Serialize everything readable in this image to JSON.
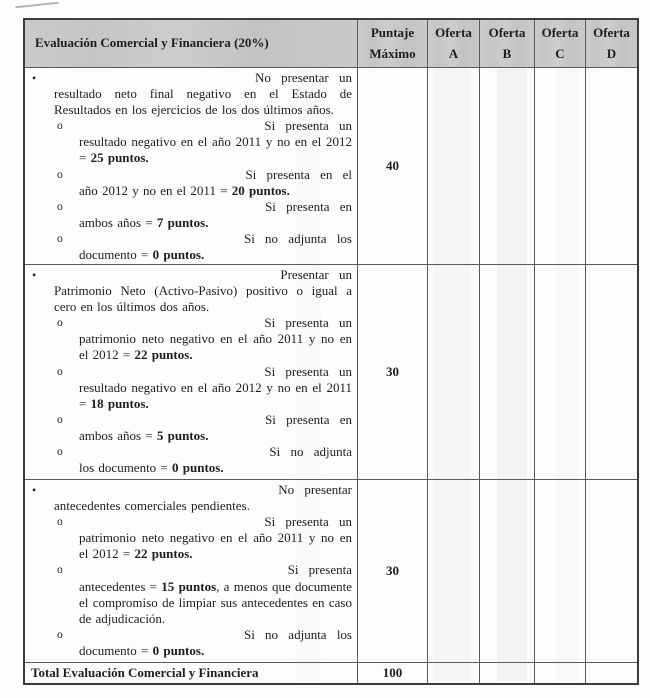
{
  "table": {
    "bullet_marker": "•",
    "sub_marker": "o",
    "header": {
      "criteria_label": "Evaluación Comercial y Financiera (20%)",
      "score_col": {
        "line1": "Puntaje",
        "line2": "Máximo"
      },
      "offer_cols": [
        {
          "line1": "Oferta",
          "letter": "A"
        },
        {
          "line1": "Oferta",
          "letter": "B"
        },
        {
          "line1": "Oferta",
          "letter": "C"
        },
        {
          "line1": "Oferta",
          "letter": "D"
        }
      ]
    },
    "rows": [
      {
        "max_score": "40",
        "offers": [
          "",
          "",
          "",
          ""
        ],
        "items": [
          {
            "level": 1,
            "first": "No presentar un",
            "rest": [
              {
                "t": "resultado neto final negativo en el Estado de Resultados en los ejercicios de los dos últimos años."
              }
            ]
          },
          {
            "level": 2,
            "first": "Si presenta un",
            "rest": [
              {
                "t": "resultado negativo en el año 2011 y no en el 2012 = "
              },
              {
                "t": "25 puntos.",
                "b": true
              }
            ]
          },
          {
            "level": 2,
            "first": "Si presenta en el",
            "rest": [
              {
                "t": "año 2012 y no en el 2011 = "
              },
              {
                "t": "20 puntos.",
                "b": true
              }
            ]
          },
          {
            "level": 2,
            "first": "Si presenta en",
            "rest": [
              {
                "t": "ambos años = "
              },
              {
                "t": "7 puntos.",
                "b": true
              }
            ]
          },
          {
            "level": 2,
            "first": "Si no adjunta los",
            "rest": [
              {
                "t": "documento = "
              },
              {
                "t": "0 puntos.",
                "b": true
              }
            ]
          }
        ]
      },
      {
        "max_score": "30",
        "offers": [
          "",
          "",
          "",
          ""
        ],
        "items": [
          {
            "level": 1,
            "first": "Presentar un",
            "rest": [
              {
                "t": "Patrimonio Neto (Activo-Pasivo) positivo o igual a cero en los últimos dos años."
              }
            ]
          },
          {
            "level": 2,
            "first": "Si presenta un",
            "rest": [
              {
                "t": "patrimonio neto negativo en el año 2011 y no en el 2012 = "
              },
              {
                "t": "22 puntos.",
                "b": true
              }
            ]
          },
          {
            "level": 2,
            "first": "Si presenta un",
            "rest": [
              {
                "t": "resultado negativo en el año 2012 y no en el 2011 = "
              },
              {
                "t": "18 puntos.",
                "b": true
              }
            ]
          },
          {
            "level": 2,
            "first": "Si presenta en",
            "rest": [
              {
                "t": "ambos años = "
              },
              {
                "t": "5 puntos.",
                "b": true
              }
            ]
          },
          {
            "level": 2,
            "first": "Si no adjunta",
            "rest": [
              {
                "t": "los documento = "
              },
              {
                "t": "0 puntos.",
                "b": true
              }
            ]
          }
        ]
      },
      {
        "max_score": "30",
        "offers": [
          "",
          "",
          "",
          ""
        ],
        "items": [
          {
            "level": 1,
            "first": "No presentar",
            "rest": [
              {
                "t": "antecedentes comerciales pendientes."
              }
            ]
          },
          {
            "level": 2,
            "first": "Si presenta un",
            "rest": [
              {
                "t": "patrimonio neto negativo en el año 2011 y no en el 2012 = "
              },
              {
                "t": "22 puntos.",
                "b": true
              }
            ]
          },
          {
            "level": 2,
            "first": "Si presenta",
            "rest": [
              {
                "t": "antecedentes = "
              },
              {
                "t": "15 puntos",
                "b": true
              },
              {
                "t": ", a menos que documente el compromiso de limpiar sus antecedentes en caso de adjudicación."
              }
            ]
          },
          {
            "level": 2,
            "first": "Si no adjunta los",
            "rest": [
              {
                "t": "documento = "
              },
              {
                "t": "0 puntos.",
                "b": true
              }
            ]
          }
        ]
      }
    ],
    "total_row": {
      "label": "Total Evaluación Comercial y Financiera",
      "max_score": "100",
      "offers": [
        "",
        "",
        "",
        ""
      ]
    }
  },
  "colors": {
    "paper": "#fdfdfc",
    "text": "#1e1e1e",
    "header_fill": "#c9c9c9",
    "border_dark": "#3c3c3c",
    "border_inner": "#5a5a5a"
  }
}
